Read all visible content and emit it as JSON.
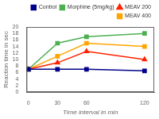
{
  "chart_data": {
    "type": "line",
    "xlabel": "Time interval in min",
    "ylabel": "Reaction time in sec",
    "x": [
      0,
      30,
      60,
      120
    ],
    "xlim": [
      -2,
      130
    ],
    "xticks": [
      0,
      30,
      60,
      120
    ],
    "ylim": [
      0,
      20
    ],
    "yticks": [
      0,
      2,
      4,
      6,
      8,
      10,
      12,
      14,
      16,
      18,
      20
    ],
    "grid": false,
    "legend": "upper right",
    "series": [
      {
        "name": "Control",
        "color": "#00008B",
        "marker": "square",
        "line_style": "solid",
        "values": [
          7.0,
          7.0,
          7.0,
          6.5
        ]
      },
      {
        "name": "Morphine (5mg/kg)",
        "color": "#4CAF50",
        "marker": "square",
        "line_style": "solid",
        "values": [
          7.0,
          15.0,
          17.0,
          18.0
        ]
      },
      {
        "name": "MEAV 200",
        "color": "#FF2200",
        "marker": "triangle",
        "line_style": "solid",
        "values": [
          7.0,
          9.0,
          12.5,
          10.0
        ]
      },
      {
        "name": "MEAV 400",
        "color": "#FFA500",
        "marker": "square",
        "line_style": "solid",
        "values": [
          7.0,
          11.0,
          15.0,
          14.0
        ]
      }
    ]
  }
}
